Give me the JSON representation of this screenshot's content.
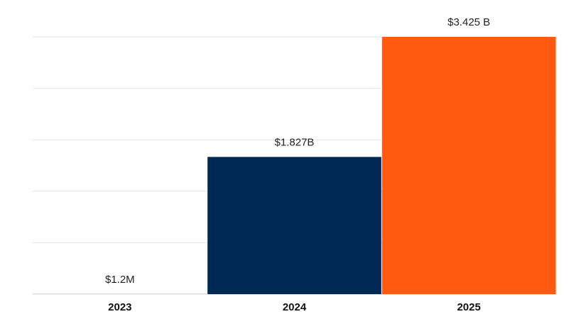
{
  "chart_data": {
    "type": "bar",
    "categories": [
      "2023",
      "2024",
      "2025"
    ],
    "series": [
      {
        "values": [
          1200000,
          1827000000,
          3425000000
        ],
        "value_labels": [
          "$1.2M",
          "$1.827B",
          "$3.425 B"
        ],
        "colors": [
          "#002855",
          "#002855",
          "#ff5a0f"
        ]
      }
    ],
    "ylim": [
      0,
      3425000000
    ],
    "yticks": [
      0,
      685000000,
      1370000000,
      2055000000,
      2740000000,
      3425000000
    ],
    "grid": true
  }
}
